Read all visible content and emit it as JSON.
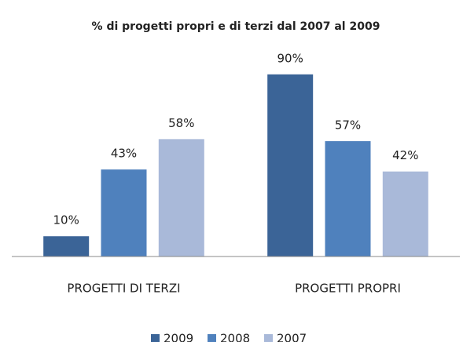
{
  "chart_data": {
    "type": "bar",
    "title": "% di progetti propri e di terzi dal 2007 al 2009",
    "categories": [
      "PROGETTI DI TERZI",
      "PROGETTI PROPRI"
    ],
    "series": [
      {
        "name": "2009",
        "color": "#3b6497",
        "values": [
          10,
          90
        ],
        "value_labels": [
          "10%",
          "90%"
        ]
      },
      {
        "name": "2008",
        "color": "#4f81bd",
        "values": [
          43,
          57
        ],
        "value_labels": [
          "43%",
          "57%"
        ]
      },
      {
        "name": "2007",
        "color": "#a9b9d9",
        "values": [
          58,
          42
        ],
        "value_labels": [
          "58%",
          "42%"
        ]
      }
    ],
    "ylim": [
      0,
      100
    ],
    "legend": "bottom"
  }
}
